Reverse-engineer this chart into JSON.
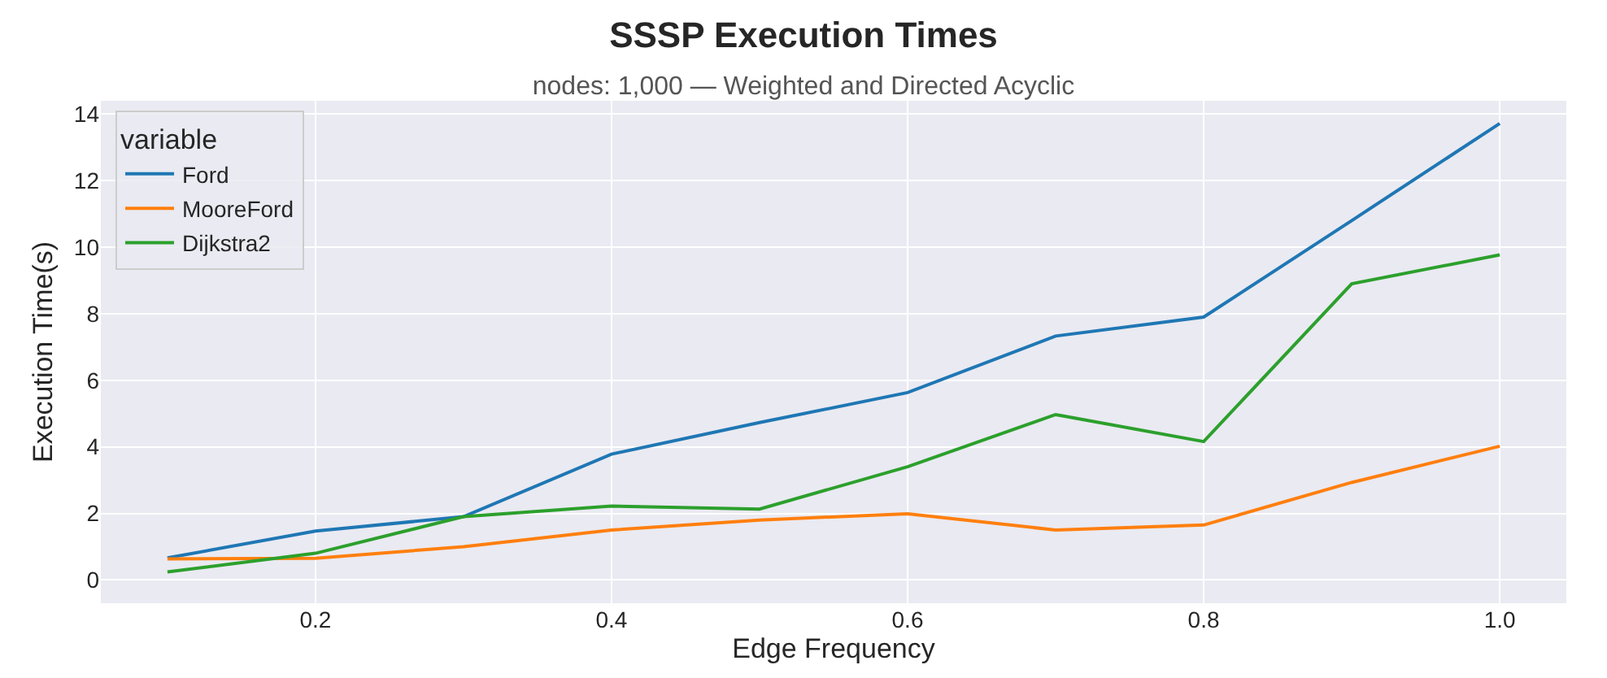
{
  "chart_data": {
    "type": "line",
    "title": "SSSP Execution Times",
    "subtitle": "nodes: 1,000 — Weighted and Directed Acyclic",
    "xlabel": "Edge Frequency",
    "ylabel": "Execution Time(s)",
    "legend_title": "variable",
    "x": [
      0.1,
      0.2,
      0.3,
      0.4,
      0.5,
      0.6,
      0.7,
      0.8,
      0.9,
      1.0
    ],
    "series": [
      {
        "name": "Ford",
        "color": "#1f77b4",
        "values": [
          0.66,
          1.47,
          1.9,
          3.78,
          4.73,
          5.63,
          7.33,
          7.9,
          10.8,
          13.72
        ]
      },
      {
        "name": "MooreFord",
        "color": "#ff7f0e",
        "values": [
          0.63,
          0.65,
          1.0,
          1.5,
          1.8,
          1.99,
          1.5,
          1.65,
          2.93,
          4.02
        ]
      },
      {
        "name": "Dijkstra2",
        "color": "#2ca02c",
        "values": [
          0.24,
          0.8,
          1.9,
          2.22,
          2.13,
          3.4,
          4.97,
          4.16,
          8.9,
          9.77
        ]
      }
    ],
    "xlim": [
      0.055,
      1.045
    ],
    "xticks": [
      0.2,
      0.4,
      0.6,
      0.8,
      {
        "value": 1.0,
        "label": "1.0"
      }
    ],
    "ylim": [
      -0.7,
      14.4
    ],
    "yticks": [
      0,
      2,
      4,
      6,
      8,
      10,
      12,
      14
    ],
    "grid": true,
    "legend": "top left",
    "marker": "none",
    "line_style": "solid"
  }
}
